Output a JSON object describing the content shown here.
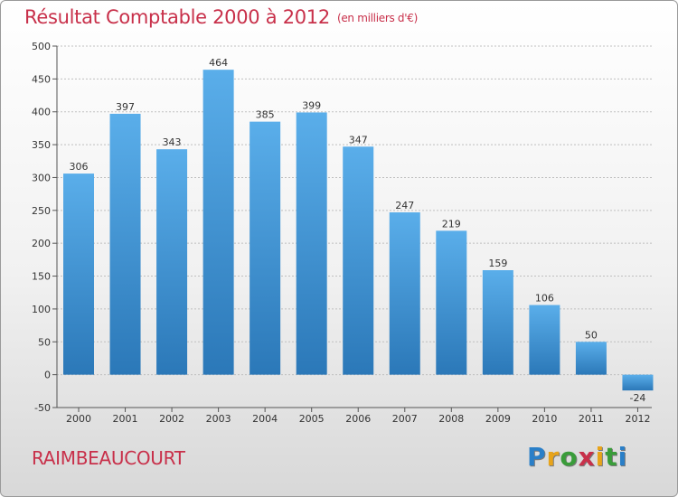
{
  "title": "Résultat Comptable 2000 à 2012",
  "subtitle": "(en milliers d'€)",
  "commune": "RAIMBEAUCOURT",
  "logo": {
    "letters": [
      "P",
      "r",
      "o",
      "x",
      "i",
      "t",
      "i"
    ],
    "colors": [
      "#2a7fc8",
      "#e8a41a",
      "#3a9c3a",
      "#c8304a",
      "#e8a41a",
      "#3a9c3a",
      "#2a7fc8"
    ]
  },
  "colors": {
    "bar_top": "#5aaeea",
    "bar_bottom": "#2b78b8",
    "text": "#333333",
    "title": "#c8304a",
    "grid": "#bfbfbf"
  },
  "chart_data": {
    "type": "bar",
    "title": "Résultat Comptable 2000 à 2012",
    "subtitle": "(en milliers d'€)",
    "xlabel": "",
    "ylabel": "",
    "categories": [
      "2000",
      "2001",
      "2002",
      "2003",
      "2004",
      "2005",
      "2006",
      "2007",
      "2008",
      "2009",
      "2010",
      "2011",
      "2012"
    ],
    "values": [
      306,
      397,
      343,
      464,
      385,
      399,
      347,
      247,
      219,
      159,
      106,
      50,
      -24
    ],
    "ylim": [
      -50,
      500
    ],
    "yticks": [
      -50,
      0,
      50,
      100,
      150,
      200,
      250,
      300,
      350,
      400,
      450,
      500
    ],
    "grid": true
  }
}
